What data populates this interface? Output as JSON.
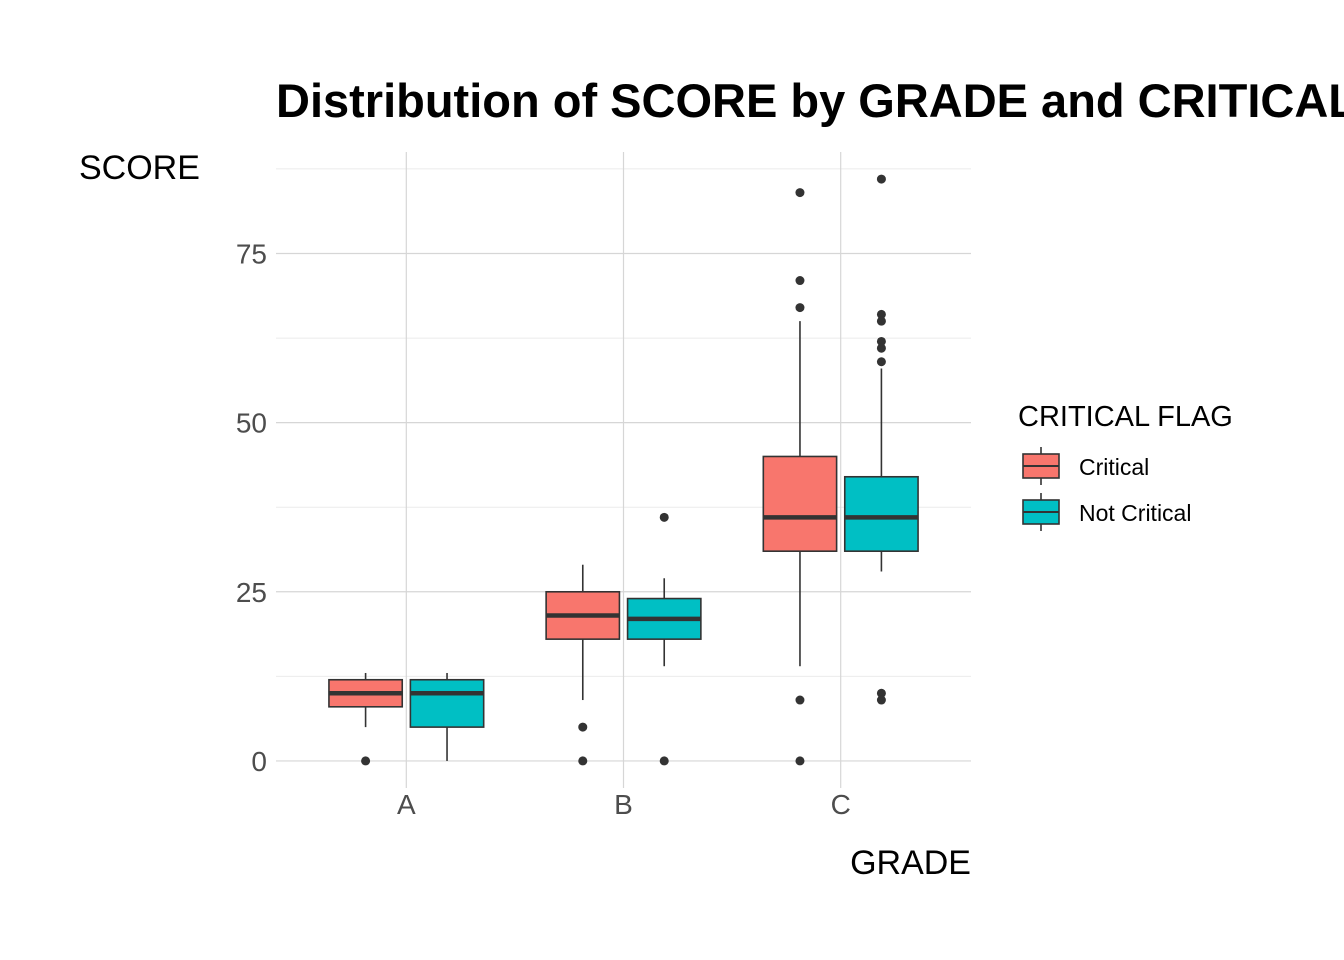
{
  "chart_data": {
    "type": "boxplot",
    "title": "Distribution of SCORE by GRADE and CRITICAL FLAG",
    "xlabel": "GRADE",
    "ylabel": "SCORE",
    "categories": [
      "A",
      "B",
      "C"
    ],
    "ylim": [
      -4,
      90
    ],
    "yticks": [
      0,
      25,
      50,
      75
    ],
    "grid": true,
    "legend": {
      "title": "CRITICAL FLAG",
      "position": "right",
      "entries": [
        "Critical",
        "Not Critical"
      ]
    },
    "series": [
      {
        "name": "Critical",
        "color": "#F8766D",
        "boxes": [
          {
            "category": "A",
            "whisker_low": 5,
            "q1": 8,
            "median": 10,
            "q3": 12,
            "whisker_high": 13,
            "outliers": [
              0
            ]
          },
          {
            "category": "B",
            "whisker_low": 9,
            "q1": 18,
            "median": 21.5,
            "q3": 25,
            "whisker_high": 29,
            "outliers": [
              5,
              0
            ]
          },
          {
            "category": "C",
            "whisker_low": 14,
            "q1": 31,
            "median": 36,
            "q3": 45,
            "whisker_high": 65,
            "outliers": [
              84,
              71,
              67,
              9,
              0
            ]
          }
        ]
      },
      {
        "name": "Not Critical",
        "color": "#00BFC4",
        "boxes": [
          {
            "category": "A",
            "whisker_low": 0,
            "q1": 5,
            "median": 10,
            "q3": 12,
            "whisker_high": 13,
            "outliers": []
          },
          {
            "category": "B",
            "whisker_low": 14,
            "q1": 18,
            "median": 21,
            "q3": 24,
            "whisker_high": 27,
            "outliers": [
              36,
              0
            ]
          },
          {
            "category": "C",
            "whisker_low": 28,
            "q1": 31,
            "median": 36,
            "q3": 42,
            "whisker_high": 58,
            "outliers": [
              86,
              66,
              65,
              62,
              61,
              59,
              10,
              9
            ]
          }
        ]
      }
    ]
  }
}
